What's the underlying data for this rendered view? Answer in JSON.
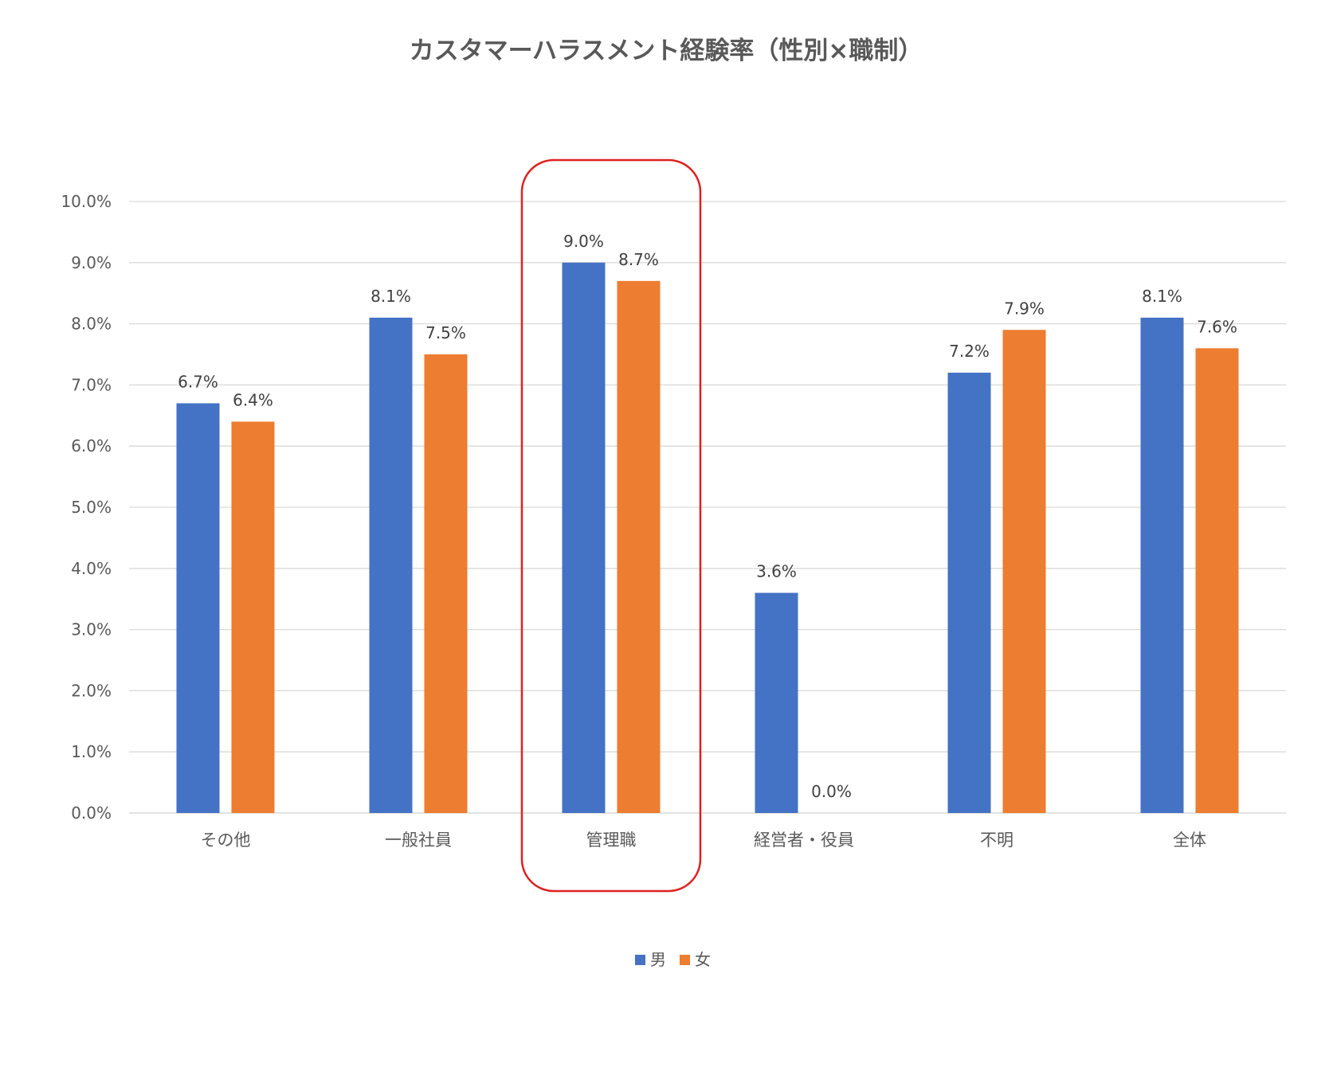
{
  "chart_data": {
    "type": "bar",
    "title": "カスタマーハラスメント経験率（性別×職制）",
    "xlabel": "",
    "ylabel": "",
    "categories": [
      "その他",
      "一般社員",
      "管理職",
      "経営者・役員",
      "不明",
      "全体"
    ],
    "series": [
      {
        "name": "男",
        "color": "#4472C4",
        "values": [
          6.7,
          8.1,
          9.0,
          3.6,
          7.2,
          8.1
        ],
        "labels": [
          "6.7%",
          "8.1%",
          "9.0%",
          "3.6%",
          "7.2%",
          "8.1%"
        ]
      },
      {
        "name": "女",
        "color": "#ED7D31",
        "values": [
          6.4,
          7.5,
          8.7,
          0.0,
          7.9,
          7.6
        ],
        "labels": [
          "6.4%",
          "7.5%",
          "8.7%",
          "0.0%",
          "7.9%",
          "7.6%"
        ]
      }
    ],
    "ylim": [
      0,
      10
    ],
    "yticks": [
      0,
      1,
      2,
      3,
      4,
      5,
      6,
      7,
      8,
      9,
      10
    ],
    "ytick_labels": [
      "0.0%",
      "1.0%",
      "2.0%",
      "3.0%",
      "4.0%",
      "5.0%",
      "6.0%",
      "7.0%",
      "8.0%",
      "9.0%",
      "10.0%"
    ],
    "grid": true,
    "legend_position": "bottom",
    "highlight": {
      "category": "管理職",
      "color": "#E02020"
    }
  }
}
